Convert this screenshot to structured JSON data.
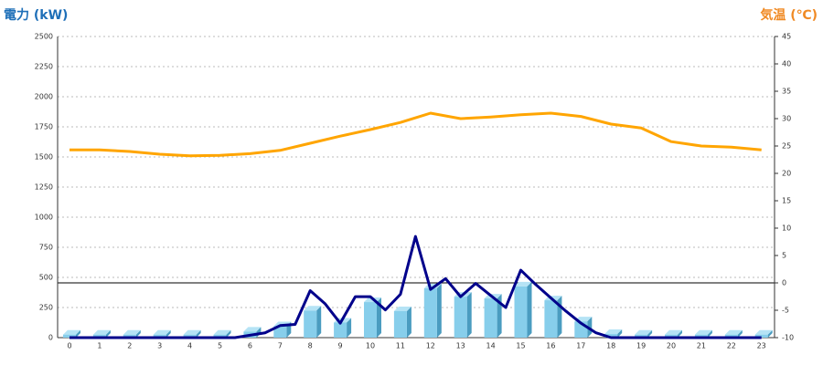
{
  "chart_data": {
    "type": "bar",
    "ylabel": "電力 (kW)",
    "y2label": "気温 (℃)",
    "categories": [
      "0",
      "1",
      "2",
      "3",
      "4",
      "5",
      "6",
      "7",
      "8",
      "9",
      "10",
      "11",
      "12",
      "13",
      "14",
      "15",
      "16",
      "17",
      "18",
      "19",
      "20",
      "21",
      "22",
      "23"
    ],
    "ylim": [
      0,
      2500
    ],
    "yticks": [
      0,
      250,
      500,
      750,
      1000,
      1250,
      1500,
      1750,
      2000,
      2250,
      2500
    ],
    "y2lim": [
      -10,
      45
    ],
    "y2ticks": [
      -10,
      -5,
      0,
      5,
      10,
      15,
      20,
      25,
      30,
      35,
      40,
      45
    ],
    "grid": true,
    "series": [
      {
        "type": "bar",
        "color": "#87ceeb",
        "values": [
          25,
          25,
          25,
          25,
          25,
          25,
          50,
          95,
          225,
          125,
          295,
          220,
          410,
          340,
          325,
          425,
          310,
          135,
          30,
          25,
          25,
          25,
          25,
          25
        ]
      },
      {
        "type": "line",
        "color": "#00008b",
        "x": [
          0,
          0.5,
          1,
          1.5,
          2,
          2.5,
          3,
          3.5,
          4,
          4.5,
          5,
          5.5,
          6,
          6.5,
          7,
          7.5,
          8,
          8.5,
          9,
          9.5,
          10,
          10.5,
          11,
          11.5,
          12,
          12.5,
          13,
          13.5,
          14,
          14.5,
          15,
          15.5,
          16,
          16.5,
          17,
          17.5,
          18,
          18.5,
          19,
          19.5,
          20,
          20.5,
          21,
          21.5,
          22,
          22.5,
          23
        ],
        "values": [
          0,
          0,
          0,
          0,
          0,
          0,
          0,
          0,
          0,
          0,
          0,
          0,
          20,
          40,
          100,
          110,
          390,
          280,
          120,
          340,
          340,
          230,
          360,
          840,
          400,
          490,
          340,
          450,
          350,
          250,
          560,
          440,
          330,
          220,
          120,
          40,
          0,
          0,
          0,
          0,
          0,
          0,
          0,
          0,
          0,
          0,
          0
        ]
      },
      {
        "type": "line",
        "color": "#ffa500",
        "axis": "y2",
        "values": [
          24.3,
          24.3,
          24,
          23.5,
          23.2,
          23.3,
          23.6,
          24.2,
          25.5,
          26.8,
          28,
          29.3,
          31,
          30,
          30.3,
          30.7,
          31,
          30.4,
          29,
          28.3,
          25.8,
          25,
          24.8,
          24.3
        ]
      }
    ]
  }
}
